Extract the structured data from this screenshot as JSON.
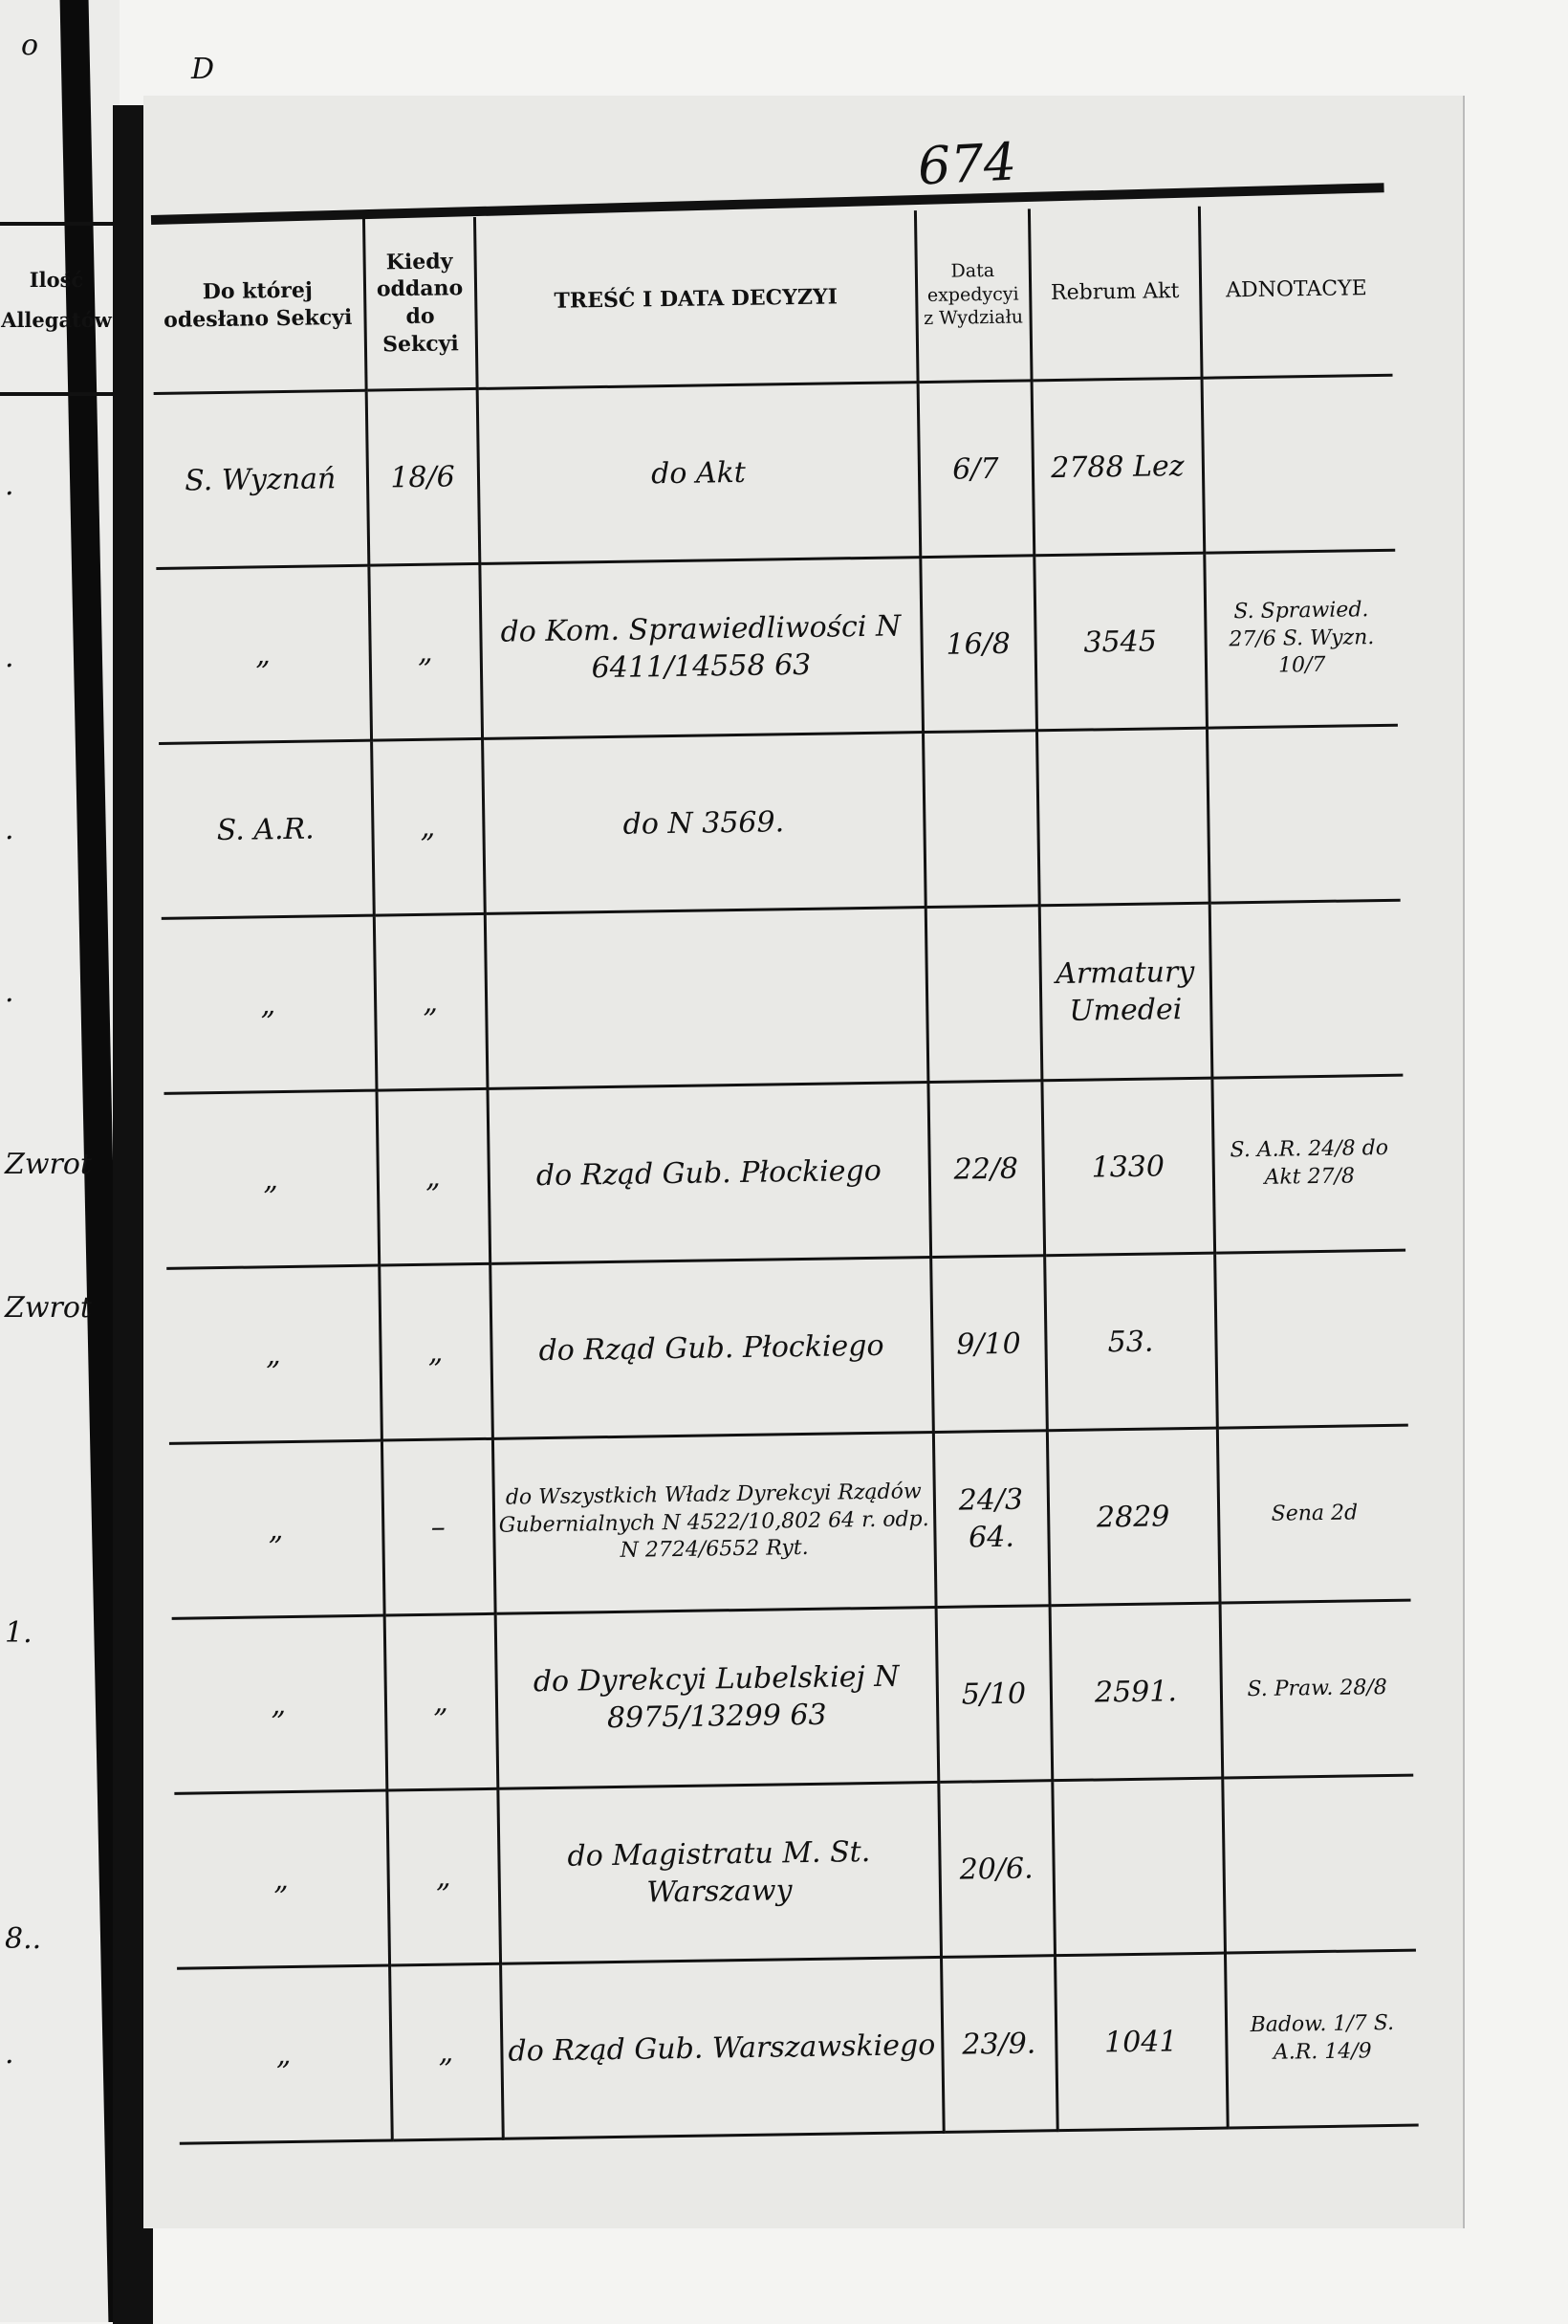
{
  "corner_marks": [
    "o",
    "D"
  ],
  "page_number": "674",
  "left_page": {
    "header": "Ilość Allegatów",
    "notes": [
      ".",
      ".",
      ".",
      ".",
      "Zwrot",
      "Zwrot",
      "1.",
      "8..",
      "."
    ]
  },
  "columns": [
    "Do której odesłano Sekcyi",
    "Kiedy oddano do Sekcyi",
    "TREŚĆ I DATA DECYZYI",
    "Data expedycyi z Wydziału",
    "Rebrum Akt",
    "ADNOTACYE"
  ],
  "rows": [
    {
      "sekcja": "S. Wyznań",
      "kiedy": "18/6",
      "tresc": "do Akt",
      "data_exp": "6/7",
      "rebrum": "2788 Lez",
      "adnotacye": ""
    },
    {
      "sekcja": "„",
      "kiedy": "„",
      "tresc": "do Kom. Sprawiedliwości N 6411/14558 63",
      "data_exp": "16/8",
      "rebrum": "3545",
      "adnotacye": "S. Sprawied. 27/6 S. Wyzn. 10/7"
    },
    {
      "sekcja": "S. A.R.",
      "kiedy": "„",
      "tresc": "do N 3569.",
      "data_exp": "",
      "rebrum": "",
      "adnotacye": ""
    },
    {
      "sekcja": "„",
      "kiedy": "„",
      "tresc": "",
      "data_exp": "",
      "rebrum": "Armatury Umedei",
      "adnotacye": ""
    },
    {
      "sekcja": "„",
      "kiedy": "„",
      "tresc": "do Rząd Gub. Płockiego",
      "data_exp": "22/8",
      "rebrum": "1330",
      "adnotacye": "S. A.R. 24/8 do Akt 27/8"
    },
    {
      "sekcja": "„",
      "kiedy": "„",
      "tresc": "do Rząd Gub. Płockiego",
      "data_exp": "9/10",
      "rebrum": "53.",
      "adnotacye": ""
    },
    {
      "sekcja": "„",
      "kiedy": "–",
      "tresc": "do Wszystkich Władz Dyrekcyi Rządów Gubernialnych N 4522/10,802 64 r. odp. N 2724/6552 Ryt.",
      "data_exp": "24/3 64.",
      "rebrum": "2829",
      "adnotacye": "Sena 2d"
    },
    {
      "sekcja": "„",
      "kiedy": "„",
      "tresc": "do Dyrekcyi Lubelskiej N 8975/13299 63",
      "data_exp": "5/10",
      "rebrum": "2591.",
      "adnotacye": "S. Praw. 28/8"
    },
    {
      "sekcja": "„",
      "kiedy": "„",
      "tresc": "do Magistratu M. St. Warszawy",
      "data_exp": "20/6.",
      "rebrum": "",
      "adnotacye": ""
    },
    {
      "sekcja": "„",
      "kiedy": "„",
      "tresc": "do Rząd Gub. Warszawskiego",
      "data_exp": "23/9.",
      "rebrum": "1041",
      "adnotacye": "Badow. 1/7 S. A.R. 14/9"
    }
  ]
}
